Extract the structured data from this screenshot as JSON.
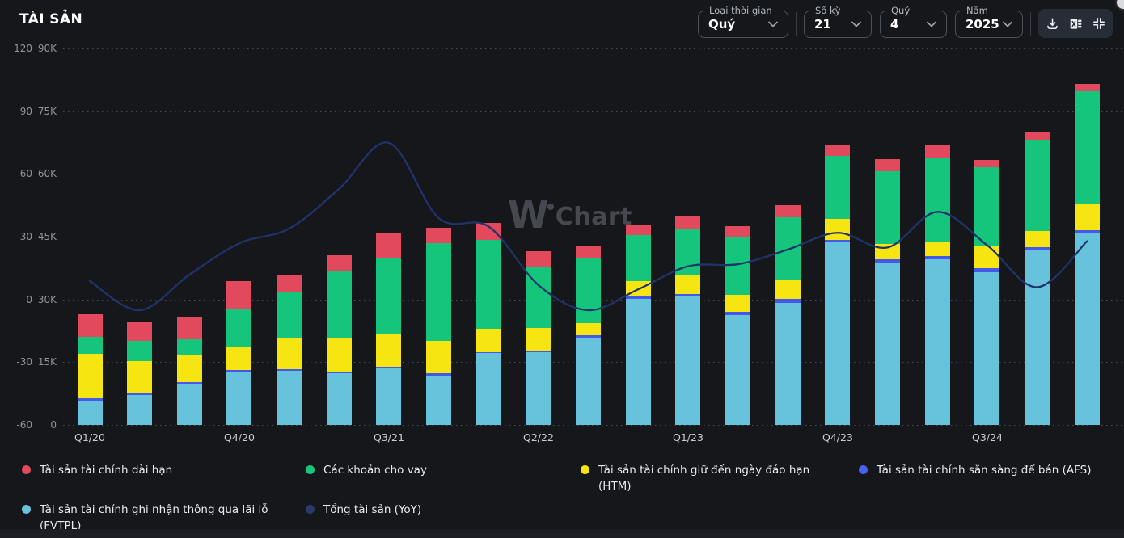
{
  "header": {
    "title": "TÀI SẢN"
  },
  "toolbar": {
    "selects": [
      {
        "label": "Loại thời gian",
        "value": "Quý"
      },
      {
        "label": "Số kỳ",
        "value": "21"
      },
      {
        "label": "Quý",
        "value": "4"
      },
      {
        "label": "Năm",
        "value": "2025"
      }
    ],
    "icon_buttons": [
      "download-icon",
      "excel-export-icon",
      "fit-screen-icon"
    ]
  },
  "watermark": {
    "w": "W",
    "rest": "Chart"
  },
  "chart_data": {
    "type": "bar",
    "subtype": "stacked-bar-with-line",
    "categories": [
      "Q1/20",
      "Q2/20",
      "Q3/20",
      "Q4/20",
      "Q1/21",
      "Q2/21",
      "Q3/21",
      "Q4/21",
      "Q1/22",
      "Q2/22",
      "Q3/22",
      "Q4/22",
      "Q1/23",
      "Q2/23",
      "Q3/23",
      "Q4/23",
      "Q1/24",
      "Q2/24",
      "Q3/24",
      "Q4/24",
      "Q1/25"
    ],
    "x_labels_shown_every": 3,
    "x_labels_shown": [
      "Q1/20",
      "Q4/20",
      "Q3/21",
      "Q2/22",
      "Q1/23",
      "Q4/23",
      "Q3/24"
    ],
    "percent_axis": {
      "ticks": [
        "120",
        "90",
        "60",
        "30",
        "0",
        "-30",
        "-60"
      ],
      "max": 120,
      "min": -60
    },
    "value_axis": {
      "ticks": [
        "90K",
        "75K",
        "60K",
        "45K",
        "30K",
        "15K",
        "0"
      ],
      "max_thousand": 90,
      "min_thousand": 0
    },
    "grid": "dotted-horizontal",
    "legend_position": "bottom",
    "series": [
      {
        "name": "Tài sản tài chính ghi nhận thông qua lãi lỗ (FVTPL)",
        "role": "stack",
        "color": "#67c2dc",
        "values_thousand": [
          5.8,
          7.2,
          9.9,
          12.8,
          13.0,
          12.4,
          13.7,
          11.8,
          17.1,
          17.3,
          20.8,
          30.2,
          30.7,
          26.3,
          29.2,
          43.6,
          38.9,
          39.5,
          36.6,
          41.8,
          45.8
        ]
      },
      {
        "name": "Tài sản tài chính sẵn sàng để bán (AFS)",
        "role": "stack",
        "color": "#4459ec",
        "values_thousand": [
          0.5,
          0.4,
          0.4,
          0.3,
          0.3,
          0.3,
          0.2,
          0.5,
          0.2,
          0.3,
          0.7,
          0.6,
          0.6,
          0.8,
          1.0,
          0.7,
          0.7,
          0.8,
          0.8,
          0.7,
          0.8
        ]
      },
      {
        "name": "Tài sản tài chính giữ đến ngày đáo hạn (HTM)",
        "role": "stack",
        "color": "#f7e512",
        "values_thousand": [
          10.7,
          7.7,
          6.5,
          5.6,
          7.3,
          7.9,
          7.9,
          7.7,
          5.7,
          5.5,
          2.9,
          3.6,
          4.5,
          4.0,
          4.3,
          4.9,
          3.6,
          3.4,
          5.3,
          3.9,
          6.1
        ]
      },
      {
        "name": "Các khoản cho vay",
        "role": "stack",
        "color": "#16c57c",
        "values_thousand": [
          4.1,
          4.7,
          3.7,
          9.2,
          11.0,
          16.1,
          18.2,
          23.5,
          21.3,
          14.6,
          15.6,
          10.9,
          11.1,
          14.0,
          15.1,
          15.1,
          17.4,
          20.3,
          19.0,
          21.8,
          27.1
        ]
      },
      {
        "name": "Tài sản tài chính dài hạn",
        "role": "stack",
        "color": "#e2495c",
        "values_thousand": [
          5.3,
          4.7,
          5.3,
          6.4,
          4.4,
          3.9,
          5.9,
          3.7,
          3.9,
          3.9,
          2.7,
          2.6,
          2.9,
          2.5,
          2.9,
          2.8,
          2.9,
          3.1,
          1.6,
          2.0,
          1.8
        ]
      },
      {
        "name": "Tổng tài sản (YoY)",
        "role": "line",
        "axis": "percent",
        "color": "#20336b",
        "values_percent": [
          9,
          -5,
          12,
          27,
          34,
          53,
          75,
          39,
          35,
          7,
          -5,
          5,
          16,
          17,
          24,
          32,
          25,
          42,
          26,
          6,
          28
        ]
      }
    ]
  },
  "legend": {
    "items": [
      {
        "label": "Tài sản tài chính dài hạn",
        "color": "#e2495c"
      },
      {
        "label": "Các khoản cho vay",
        "color": "#16c57c"
      },
      {
        "label": "Tài sản tài chính giữ đến ngày đáo hạn (HTM)",
        "color": "#f7e512"
      },
      {
        "label": "Tài sản tài chính sẵn sàng để bán (AFS)",
        "color": "#4a60f0"
      },
      {
        "label": "Tài sản tài chính ghi nhận thông qua lãi lỗ (FVTPL)",
        "color": "#67c2dc"
      },
      {
        "label": "Tổng tài sản (YoY)",
        "color": "#2a3968"
      }
    ]
  },
  "colors": {
    "background": "#16171b",
    "grid": "#474b54",
    "axis_text": "#8f949d",
    "x_axis_text": "#c7ccd4",
    "control_border": "#4c525a",
    "iconbar_background": "#272d37",
    "watermark": "#45484f",
    "footer_strip": "#1d1e23"
  }
}
